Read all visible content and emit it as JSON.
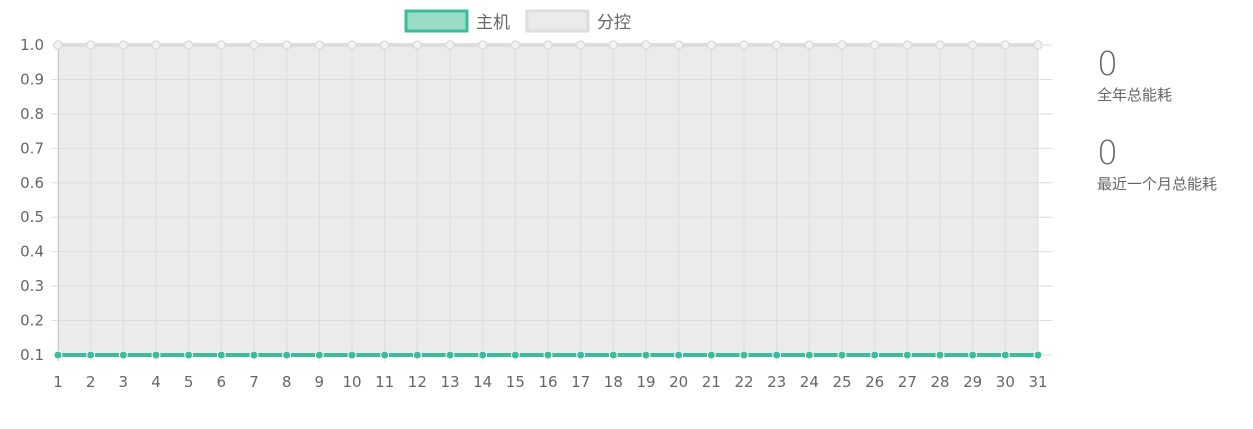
{
  "chart_data": {
    "type": "line",
    "x": [
      1,
      2,
      3,
      4,
      5,
      6,
      7,
      8,
      9,
      10,
      11,
      12,
      13,
      14,
      15,
      16,
      17,
      18,
      19,
      20,
      21,
      22,
      23,
      24,
      25,
      26,
      27,
      28,
      29,
      30,
      31
    ],
    "ylim": [
      0.1,
      1.0
    ],
    "yticks": [
      "1.0",
      "0.9",
      "0.8",
      "0.7",
      "0.6",
      "0.5",
      "0.4",
      "0.3",
      "0.2",
      "0.1"
    ],
    "ytick_values": [
      1.0,
      0.9,
      0.8,
      0.7,
      0.6,
      0.5,
      0.4,
      0.3,
      0.2,
      0.1
    ],
    "grid": true,
    "legend_position": "top-center",
    "series": [
      {
        "name": "主机",
        "color": "#3cbc9b",
        "fill": "#98dcc8",
        "values": [
          0.1,
          0.1,
          0.1,
          0.1,
          0.1,
          0.1,
          0.1,
          0.1,
          0.1,
          0.1,
          0.1,
          0.1,
          0.1,
          0.1,
          0.1,
          0.1,
          0.1,
          0.1,
          0.1,
          0.1,
          0.1,
          0.1,
          0.1,
          0.1,
          0.1,
          0.1,
          0.1,
          0.1,
          0.1,
          0.1,
          0.1
        ]
      },
      {
        "name": "分控",
        "color": "#dddddd",
        "fill": "#ebebeb",
        "values": [
          1.0,
          1.0,
          1.0,
          1.0,
          1.0,
          1.0,
          1.0,
          1.0,
          1.0,
          1.0,
          1.0,
          1.0,
          1.0,
          1.0,
          1.0,
          1.0,
          1.0,
          1.0,
          1.0,
          1.0,
          1.0,
          1.0,
          1.0,
          1.0,
          1.0,
          1.0,
          1.0,
          1.0,
          1.0,
          1.0,
          1.0
        ]
      }
    ]
  },
  "stats": {
    "annual_value": "0",
    "annual_label": "全年总能耗",
    "monthly_value": "0",
    "monthly_label": "最近一个月总能耗"
  }
}
